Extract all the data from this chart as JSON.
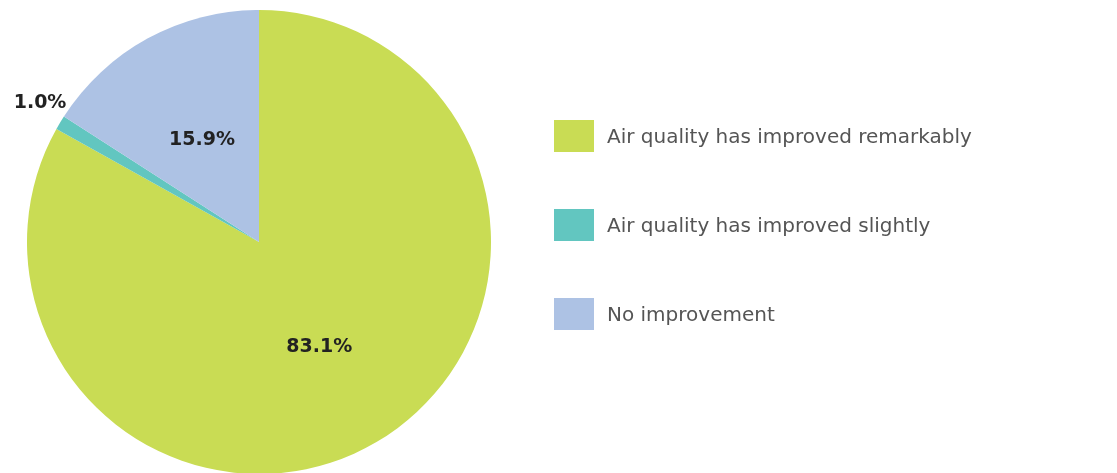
{
  "chart_data": {
    "type": "pie",
    "categories": [
      "Air quality has improved remarkably",
      "Air quality has improved slightly",
      "No improvement"
    ],
    "values": [
      83.1,
      1.0,
      15.9
    ],
    "colors": [
      "#c9dc54",
      "#62c6c0",
      "#adc2e4"
    ],
    "value_labels": [
      "83.1%",
      "1.0%",
      "15.9%"
    ],
    "legend": "right"
  }
}
